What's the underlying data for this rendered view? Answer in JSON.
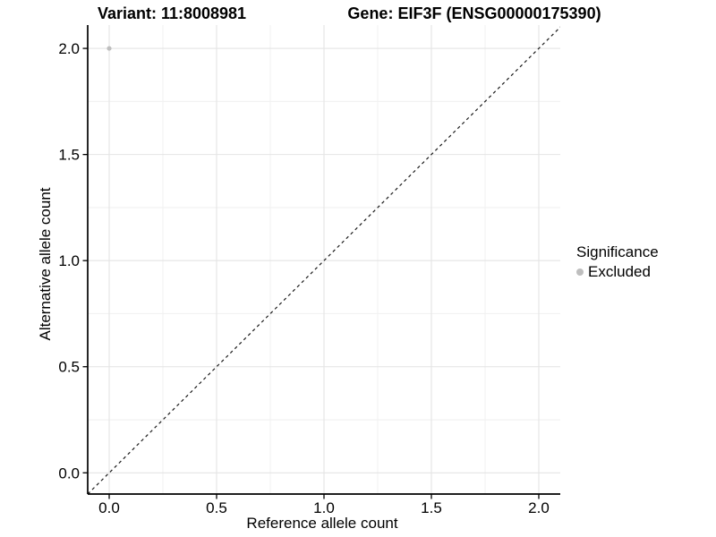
{
  "chart_data": {
    "type": "scatter",
    "title_left": "Variant: 11:8008981",
    "title_right": "Gene: EIF3F (ENSG00000175390)",
    "xlabel": "Reference allele count",
    "ylabel": "Alternative allele count",
    "xlim": [
      -0.1,
      2.1
    ],
    "ylim": [
      -0.1,
      2.11
    ],
    "x_ticks": [
      0.0,
      0.5,
      1.0,
      1.5,
      2.0
    ],
    "x_tick_labels": [
      "0.0",
      "0.5",
      "1.0",
      "1.5",
      "2.0"
    ],
    "y_ticks": [
      0.0,
      0.5,
      1.0,
      1.5,
      2.0
    ],
    "y_tick_labels": [
      "0.0",
      "0.5",
      "1.0",
      "1.5",
      "2.0"
    ],
    "x_minor_ticks": [
      0.25,
      0.75,
      1.25,
      1.75
    ],
    "y_minor_ticks": [
      0.25,
      0.75,
      1.25,
      1.75
    ],
    "grid": "major-and-minor",
    "points": [
      {
        "x": 0.0,
        "y": 2.0,
        "significance": "Excluded"
      }
    ],
    "reference_line": {
      "type": "identity",
      "style": "dashed",
      "from": [
        -0.1,
        -0.1
      ],
      "to": [
        2.13,
        2.13
      ]
    },
    "legend": {
      "title": "Significance",
      "position": "right",
      "items": [
        {
          "label": "Excluded",
          "color": "#bebebe",
          "marker": "circle"
        }
      ]
    },
    "colors": {
      "point": "#bebebe",
      "axis": "#000000",
      "grid_major": "#e4e4e4",
      "grid_minor": "#f1f1f1",
      "reference_line": "#1a1a1a",
      "background": "#ffffff"
    }
  }
}
